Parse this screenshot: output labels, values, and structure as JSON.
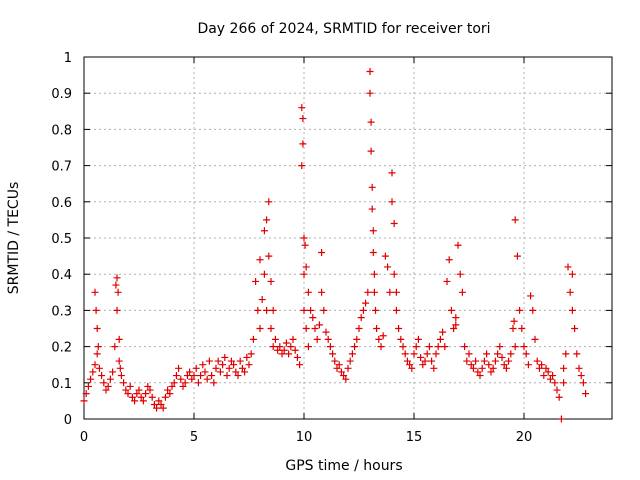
{
  "chart_data": {
    "type": "scatter",
    "title": "Day 266 of 2024, SRMTID for receiver tori",
    "xlabel": "GPS time / hours",
    "ylabel": "SRMTID / TECUs",
    "xlim": [
      0,
      24
    ],
    "ylim": [
      0,
      1
    ],
    "xticks": [
      0,
      5,
      10,
      15,
      20
    ],
    "xtick_labels": [
      "0",
      "5",
      "10",
      "15",
      "20"
    ],
    "yticks": [
      0,
      0.1,
      0.2,
      0.3,
      0.4,
      0.5,
      0.6,
      0.7,
      0.8,
      0.9,
      1
    ],
    "ytick_labels": [
      "0",
      "0.1",
      "0.2",
      "0.3",
      "0.4",
      "0.5",
      "0.6",
      "0.7",
      "0.8",
      "0.9",
      "1"
    ],
    "grid": true,
    "marker": "+",
    "marker_color": "#e00000",
    "series": [
      {
        "name": "SRMTID",
        "x": [
          0.0,
          0.1,
          0.2,
          0.3,
          0.4,
          0.5,
          0.5,
          0.55,
          0.6,
          0.6,
          0.65,
          0.7,
          0.8,
          0.9,
          1.0,
          1.1,
          1.2,
          1.3,
          1.4,
          1.45,
          1.5,
          1.5,
          1.55,
          1.6,
          1.6,
          1.65,
          1.7,
          1.8,
          1.9,
          2.0,
          2.1,
          2.2,
          2.3,
          2.4,
          2.5,
          2.6,
          2.7,
          2.8,
          2.9,
          3.0,
          3.1,
          3.2,
          3.3,
          3.4,
          3.5,
          3.6,
          3.7,
          3.8,
          3.9,
          4.0,
          4.1,
          4.2,
          4.3,
          4.4,
          4.5,
          4.6,
          4.7,
          4.8,
          4.9,
          5.0,
          5.1,
          5.2,
          5.3,
          5.4,
          5.5,
          5.6,
          5.7,
          5.8,
          5.9,
          6.0,
          6.1,
          6.2,
          6.3,
          6.4,
          6.5,
          6.6,
          6.7,
          6.8,
          6.9,
          7.0,
          7.1,
          7.2,
          7.3,
          7.4,
          7.5,
          7.6,
          7.7,
          7.8,
          7.9,
          8.0,
          8.0,
          8.1,
          8.2,
          8.2,
          8.3,
          8.3,
          8.4,
          8.4,
          8.5,
          8.5,
          8.6,
          8.6,
          8.7,
          8.8,
          8.9,
          9.0,
          9.1,
          9.2,
          9.3,
          9.4,
          9.5,
          9.6,
          9.7,
          9.8,
          9.9,
          9.9,
          9.95,
          9.95,
          10.0,
          10.0,
          10.0,
          10.05,
          10.1,
          10.1,
          10.2,
          10.2,
          10.3,
          10.4,
          10.5,
          10.6,
          10.7,
          10.8,
          10.8,
          10.9,
          11.0,
          11.1,
          11.2,
          11.3,
          11.4,
          11.5,
          11.6,
          11.7,
          11.8,
          11.9,
          12.0,
          12.1,
          12.2,
          12.3,
          12.4,
          12.5,
          12.6,
          12.7,
          12.8,
          12.9,
          13.0,
          13.0,
          13.05,
          13.05,
          13.1,
          13.1,
          13.15,
          13.15,
          13.2,
          13.2,
          13.25,
          13.3,
          13.4,
          13.5,
          13.6,
          13.7,
          13.8,
          13.9,
          14.0,
          14.0,
          14.1,
          14.1,
          14.2,
          14.2,
          14.3,
          14.4,
          14.5,
          14.6,
          14.7,
          14.8,
          14.9,
          15.0,
          15.1,
          15.2,
          15.3,
          15.4,
          15.5,
          15.6,
          15.7,
          15.8,
          15.9,
          16.0,
          16.1,
          16.2,
          16.3,
          16.4,
          16.5,
          16.6,
          16.7,
          16.8,
          16.9,
          16.9,
          17.0,
          17.1,
          17.2,
          17.3,
          17.4,
          17.5,
          17.6,
          17.7,
          17.8,
          17.9,
          18.0,
          18.1,
          18.2,
          18.3,
          18.4,
          18.5,
          18.6,
          18.7,
          18.8,
          18.9,
          19.0,
          19.1,
          19.2,
          19.3,
          19.4,
          19.5,
          19.55,
          19.6,
          19.6,
          19.7,
          19.8,
          19.9,
          20.0,
          20.1,
          20.2,
          20.3,
          20.4,
          20.5,
          20.6,
          20.7,
          20.8,
          20.9,
          21.0,
          21.1,
          21.2,
          21.3,
          21.4,
          21.5,
          21.6,
          21.7,
          21.8,
          21.8,
          21.9,
          22.0,
          22.1,
          22.2,
          22.2,
          22.3,
          22.4,
          22.5,
          22.6,
          22.7,
          22.8
        ],
        "y": [
          0.05,
          0.07,
          0.09,
          0.11,
          0.13,
          0.15,
          0.35,
          0.3,
          0.25,
          0.18,
          0.2,
          0.14,
          0.12,
          0.1,
          0.08,
          0.09,
          0.11,
          0.13,
          0.2,
          0.37,
          0.39,
          0.3,
          0.35,
          0.22,
          0.16,
          0.14,
          0.12,
          0.1,
          0.08,
          0.07,
          0.09,
          0.06,
          0.05,
          0.07,
          0.08,
          0.06,
          0.05,
          0.07,
          0.09,
          0.08,
          0.06,
          0.04,
          0.03,
          0.05,
          0.04,
          0.03,
          0.06,
          0.08,
          0.07,
          0.09,
          0.1,
          0.12,
          0.14,
          0.11,
          0.09,
          0.1,
          0.12,
          0.13,
          0.11,
          0.12,
          0.14,
          0.1,
          0.12,
          0.15,
          0.13,
          0.11,
          0.16,
          0.12,
          0.1,
          0.14,
          0.16,
          0.13,
          0.15,
          0.17,
          0.12,
          0.14,
          0.16,
          0.15,
          0.13,
          0.12,
          0.16,
          0.14,
          0.13,
          0.17,
          0.15,
          0.18,
          0.22,
          0.38,
          0.3,
          0.44,
          0.25,
          0.33,
          0.52,
          0.4,
          0.55,
          0.3,
          0.6,
          0.45,
          0.38,
          0.25,
          0.3,
          0.2,
          0.22,
          0.19,
          0.2,
          0.18,
          0.19,
          0.21,
          0.18,
          0.2,
          0.22,
          0.19,
          0.17,
          0.15,
          0.86,
          0.7,
          0.83,
          0.76,
          0.5,
          0.4,
          0.3,
          0.48,
          0.42,
          0.25,
          0.35,
          0.2,
          0.3,
          0.28,
          0.25,
          0.22,
          0.26,
          0.46,
          0.35,
          0.3,
          0.24,
          0.22,
          0.2,
          0.18,
          0.16,
          0.14,
          0.15,
          0.13,
          0.12,
          0.11,
          0.14,
          0.16,
          0.18,
          0.2,
          0.22,
          0.25,
          0.28,
          0.3,
          0.32,
          0.35,
          0.96,
          0.9,
          0.82,
          0.74,
          0.64,
          0.58,
          0.52,
          0.46,
          0.4,
          0.35,
          0.3,
          0.25,
          0.22,
          0.2,
          0.23,
          0.45,
          0.42,
          0.35,
          0.68,
          0.6,
          0.54,
          0.4,
          0.35,
          0.3,
          0.25,
          0.22,
          0.2,
          0.18,
          0.16,
          0.15,
          0.14,
          0.18,
          0.2,
          0.22,
          0.17,
          0.15,
          0.16,
          0.18,
          0.2,
          0.16,
          0.14,
          0.18,
          0.2,
          0.22,
          0.24,
          0.2,
          0.38,
          0.44,
          0.3,
          0.25,
          0.26,
          0.28,
          0.48,
          0.4,
          0.35,
          0.2,
          0.16,
          0.18,
          0.15,
          0.14,
          0.16,
          0.13,
          0.12,
          0.14,
          0.16,
          0.18,
          0.15,
          0.13,
          0.14,
          0.16,
          0.18,
          0.2,
          0.17,
          0.15,
          0.14,
          0.16,
          0.18,
          0.25,
          0.27,
          0.2,
          0.55,
          0.45,
          0.3,
          0.25,
          0.2,
          0.18,
          0.15,
          0.34,
          0.3,
          0.22,
          0.16,
          0.14,
          0.15,
          0.12,
          0.14,
          0.13,
          0.11,
          0.12,
          0.1,
          0.08,
          0.06,
          0.0,
          0.1,
          0.14,
          0.18,
          0.42,
          0.35,
          0.3,
          0.4,
          0.25,
          0.18,
          0.14,
          0.12,
          0.1,
          0.07
        ]
      }
    ]
  }
}
